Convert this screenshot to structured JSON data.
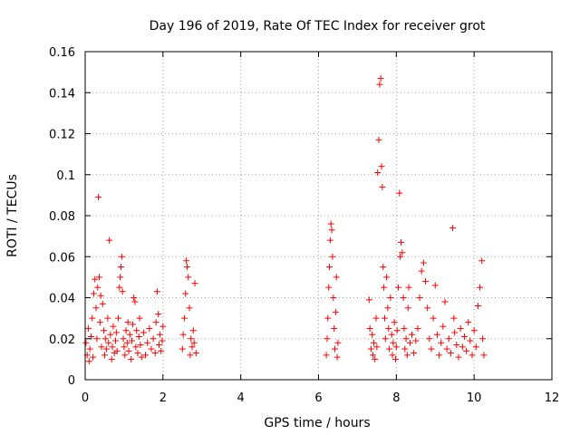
{
  "chart_data": {
    "type": "scatter",
    "title": "Day 196 of 2019, Rate Of TEC Index for receiver grot",
    "xlabel": "GPS time / hours",
    "ylabel": "ROTI / TECUs",
    "xlim": [
      0,
      12
    ],
    "ylim": [
      0,
      0.16
    ],
    "xticks": [
      "0",
      "2",
      "4",
      "6",
      "8",
      "10",
      "12"
    ],
    "yticks": [
      "0",
      "0.02",
      "0.04",
      "0.06",
      "0.08",
      "0.1",
      "0.12",
      "0.14",
      "0.16"
    ],
    "grid": true,
    "marker": "plus",
    "color": "#ff0000",
    "series": [
      {
        "points": [
          [
            0.02,
            0.018
          ],
          [
            0.05,
            0.012
          ],
          [
            0.08,
            0.025
          ],
          [
            0.1,
            0.009
          ],
          [
            0.12,
            0.015
          ],
          [
            0.15,
            0.021
          ],
          [
            0.18,
            0.03
          ],
          [
            0.2,
            0.011
          ],
          [
            0.22,
            0.042
          ],
          [
            0.25,
            0.049
          ],
          [
            0.28,
            0.035
          ],
          [
            0.3,
            0.02
          ],
          [
            0.32,
            0.045
          ],
          [
            0.34,
            0.089
          ],
          [
            0.36,
            0.05
          ],
          [
            0.38,
            0.028
          ],
          [
            0.4,
            0.041
          ],
          [
            0.42,
            0.016
          ],
          [
            0.45,
            0.037
          ],
          [
            0.48,
            0.024
          ],
          [
            0.5,
            0.012
          ],
          [
            0.52,
            0.02
          ],
          [
            0.55,
            0.015
          ],
          [
            0.58,
            0.03
          ],
          [
            0.6,
            0.018
          ],
          [
            0.62,
            0.068
          ],
          [
            0.65,
            0.022
          ],
          [
            0.68,
            0.01
          ],
          [
            0.7,
            0.016
          ],
          [
            0.72,
            0.026
          ],
          [
            0.75,
            0.013
          ],
          [
            0.78,
            0.019
          ],
          [
            0.8,
            0.023
          ],
          [
            0.82,
            0.014
          ],
          [
            0.85,
            0.03
          ],
          [
            0.88,
            0.045
          ],
          [
            0.9,
            0.05
          ],
          [
            0.92,
            0.055
          ],
          [
            0.94,
            0.06
          ],
          [
            0.96,
            0.043
          ],
          [
            0.98,
            0.02
          ],
          [
            1.0,
            0.016
          ],
          [
            1.02,
            0.012
          ],
          [
            1.05,
            0.024
          ],
          [
            1.08,
            0.018
          ],
          [
            1.1,
            0.028
          ],
          [
            1.12,
            0.014
          ],
          [
            1.15,
            0.022
          ],
          [
            1.18,
            0.01
          ],
          [
            1.2,
            0.019
          ],
          [
            1.22,
            0.027
          ],
          [
            1.25,
            0.04
          ],
          [
            1.28,
            0.038
          ],
          [
            1.3,
            0.016
          ],
          [
            1.32,
            0.024
          ],
          [
            1.35,
            0.013
          ],
          [
            1.38,
            0.021
          ],
          [
            1.4,
            0.03
          ],
          [
            1.42,
            0.017
          ],
          [
            1.45,
            0.011
          ],
          [
            1.5,
            0.023
          ],
          [
            1.55,
            0.012
          ],
          [
            1.6,
            0.018
          ],
          [
            1.65,
            0.025
          ],
          [
            1.7,
            0.015
          ],
          [
            1.75,
            0.02
          ],
          [
            1.8,
            0.013
          ],
          [
            1.82,
            0.028
          ],
          [
            1.85,
            0.043
          ],
          [
            1.88,
            0.032
          ],
          [
            1.9,
            0.017
          ],
          [
            1.92,
            0.022
          ],
          [
            1.95,
            0.014
          ],
          [
            1.98,
            0.019
          ],
          [
            2.0,
            0.026
          ],
          [
            2.5,
            0.015
          ],
          [
            2.52,
            0.022
          ],
          [
            2.55,
            0.03
          ],
          [
            2.58,
            0.042
          ],
          [
            2.6,
            0.058
          ],
          [
            2.62,
            0.055
          ],
          [
            2.65,
            0.05
          ],
          [
            2.68,
            0.035
          ],
          [
            2.7,
            0.012
          ],
          [
            2.72,
            0.02
          ],
          [
            2.75,
            0.016
          ],
          [
            2.78,
            0.024
          ],
          [
            2.8,
            0.018
          ],
          [
            2.82,
            0.047
          ],
          [
            2.85,
            0.013
          ],
          [
            6.2,
            0.012
          ],
          [
            6.22,
            0.02
          ],
          [
            6.24,
            0.03
          ],
          [
            6.26,
            0.045
          ],
          [
            6.28,
            0.055
          ],
          [
            6.3,
            0.068
          ],
          [
            6.32,
            0.076
          ],
          [
            6.34,
            0.073
          ],
          [
            6.36,
            0.06
          ],
          [
            6.38,
            0.04
          ],
          [
            6.4,
            0.025
          ],
          [
            6.42,
            0.015
          ],
          [
            6.44,
            0.033
          ],
          [
            6.46,
            0.05
          ],
          [
            6.48,
            0.011
          ],
          [
            6.5,
            0.018
          ],
          [
            7.3,
            0.039
          ],
          [
            7.32,
            0.025
          ],
          [
            7.35,
            0.015
          ],
          [
            7.38,
            0.022
          ],
          [
            7.4,
            0.012
          ],
          [
            7.42,
            0.018
          ],
          [
            7.45,
            0.01
          ],
          [
            7.48,
            0.03
          ],
          [
            7.5,
            0.016
          ],
          [
            7.52,
            0.101
          ],
          [
            7.55,
            0.117
          ],
          [
            7.57,
            0.144
          ],
          [
            7.6,
            0.147
          ],
          [
            7.62,
            0.104
          ],
          [
            7.64,
            0.094
          ],
          [
            7.66,
            0.055
          ],
          [
            7.68,
            0.045
          ],
          [
            7.7,
            0.03
          ],
          [
            7.72,
            0.02
          ],
          [
            7.75,
            0.05
          ],
          [
            7.78,
            0.035
          ],
          [
            7.8,
            0.025
          ],
          [
            7.82,
            0.015
          ],
          [
            7.85,
            0.04
          ],
          [
            7.88,
            0.022
          ],
          [
            7.9,
            0.012
          ],
          [
            7.92,
            0.018
          ],
          [
            7.95,
            0.028
          ],
          [
            7.98,
            0.01
          ],
          [
            8.0,
            0.016
          ],
          [
            8.02,
            0.024
          ],
          [
            8.05,
            0.045
          ],
          [
            8.08,
            0.091
          ],
          [
            8.1,
            0.06
          ],
          [
            8.12,
            0.067
          ],
          [
            8.15,
            0.062
          ],
          [
            8.18,
            0.04
          ],
          [
            8.2,
            0.025
          ],
          [
            8.22,
            0.015
          ],
          [
            8.25,
            0.02
          ],
          [
            8.28,
            0.012
          ],
          [
            8.3,
            0.035
          ],
          [
            8.32,
            0.045
          ],
          [
            8.35,
            0.018
          ],
          [
            8.4,
            0.022
          ],
          [
            8.45,
            0.013
          ],
          [
            8.5,
            0.019
          ],
          [
            8.55,
            0.025
          ],
          [
            8.6,
            0.04
          ],
          [
            8.65,
            0.053
          ],
          [
            8.7,
            0.057
          ],
          [
            8.75,
            0.048
          ],
          [
            8.8,
            0.035
          ],
          [
            8.85,
            0.02
          ],
          [
            8.9,
            0.015
          ],
          [
            8.95,
            0.03
          ],
          [
            9.0,
            0.046
          ],
          [
            9.05,
            0.022
          ],
          [
            9.1,
            0.012
          ],
          [
            9.15,
            0.018
          ],
          [
            9.2,
            0.026
          ],
          [
            9.25,
            0.038
          ],
          [
            9.3,
            0.015
          ],
          [
            9.35,
            0.02
          ],
          [
            9.4,
            0.013
          ],
          [
            9.45,
            0.074
          ],
          [
            9.48,
            0.03
          ],
          [
            9.5,
            0.023
          ],
          [
            9.55,
            0.017
          ],
          [
            9.6,
            0.011
          ],
          [
            9.65,
            0.025
          ],
          [
            9.7,
            0.016
          ],
          [
            9.75,
            0.021
          ],
          [
            9.8,
            0.014
          ],
          [
            9.85,
            0.028
          ],
          [
            9.9,
            0.019
          ],
          [
            9.95,
            0.012
          ],
          [
            10.0,
            0.024
          ],
          [
            10.05,
            0.016
          ],
          [
            10.1,
            0.036
          ],
          [
            10.15,
            0.045
          ],
          [
            10.2,
            0.058
          ],
          [
            10.22,
            0.02
          ],
          [
            10.25,
            0.012
          ]
        ]
      }
    ]
  }
}
